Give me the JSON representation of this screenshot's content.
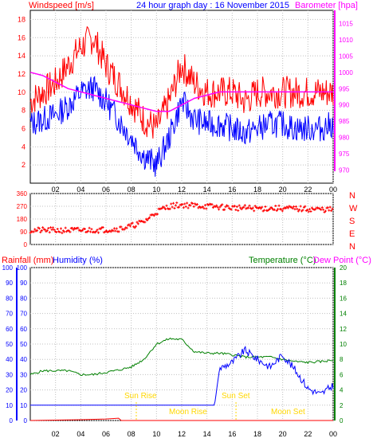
{
  "header": {
    "left_label": "Windspeed [m/s]",
    "center_label": "24 hour graph day : 16 November 2015",
    "right_label": "Barometer [hpa]"
  },
  "mid_panel": {
    "letters": [
      "N",
      "W",
      "S",
      "E",
      "N"
    ]
  },
  "bottom_header": {
    "rainfall": "Rainfall (mm)",
    "humidity": "Humidity (%)",
    "temperature": "Temperature (°C)",
    "dewpoint": "Dew Point (°C)"
  },
  "events": {
    "sunrise": "Sun Rise",
    "moonrise": "Moon Rise",
    "sunset": "Sun Set",
    "moonset": "Moon Set"
  },
  "colors": {
    "gust": "#ff0000",
    "wind": "#0000ff",
    "baro": "#ff00ff",
    "dir": "#ff0000",
    "temp": "#008000",
    "hum": "#0000ff",
    "rain": "#ff0000",
    "events": "#ffd700",
    "frame": "#000000",
    "grid": "#c0c0c0"
  },
  "chart_data": [
    {
      "type": "line",
      "x_ticks": [
        "02",
        "04",
        "06",
        "08",
        "10",
        "12",
        "14",
        "16",
        "18",
        "20",
        "22",
        "00"
      ],
      "x_range_hours": [
        0,
        24
      ],
      "y_left_ticks": [
        2,
        4,
        6,
        8,
        10,
        12,
        14,
        16,
        18
      ],
      "ylim_left": [
        0,
        19
      ],
      "y_right_ticks": [
        970,
        975,
        980,
        985,
        990,
        995,
        1000,
        1005,
        1010,
        1015
      ],
      "ylim_right": [
        966,
        1019
      ],
      "series": [
        {
          "name": "Windspeed [m/s]",
          "axis": "left",
          "x": [
            0,
            1,
            2,
            3,
            4,
            5,
            6,
            7,
            8,
            9,
            10,
            11,
            12,
            13,
            14,
            15,
            16,
            17,
            18,
            19,
            20,
            21,
            22,
            23,
            24
          ],
          "values": [
            6.5,
            7,
            7.5,
            8.5,
            10,
            10.5,
            9,
            7,
            5,
            3,
            2,
            5,
            9,
            7,
            6.5,
            6.5,
            6,
            5.5,
            6,
            6.5,
            6.5,
            6,
            6,
            6,
            6.5
          ]
        },
        {
          "name": "Gust",
          "axis": "left",
          "x": [
            0,
            1,
            2,
            3,
            4,
            5,
            6,
            7,
            8,
            9,
            10,
            11,
            12,
            13,
            14,
            15,
            16,
            17,
            18,
            19,
            20,
            21,
            22,
            23,
            24
          ],
          "values": [
            9,
            10,
            11,
            13,
            15,
            16,
            13,
            11,
            9,
            7,
            6,
            9,
            13,
            11,
            10,
            10,
            10,
            9,
            10,
            10,
            10,
            10,
            10,
            10,
            10
          ]
        },
        {
          "name": "Barometer [hpa]",
          "axis": "right",
          "x": [
            0,
            1,
            2,
            3,
            4,
            5,
            6,
            7,
            8,
            9,
            10,
            11,
            12,
            13,
            14,
            15,
            16,
            17,
            18,
            19,
            20,
            21,
            22,
            23,
            24
          ],
          "values": [
            1000,
            999,
            997,
            995,
            994,
            993,
            992,
            991,
            990,
            989,
            988,
            988,
            990,
            992,
            993,
            994,
            994,
            994,
            994,
            994,
            994,
            994,
            994,
            994,
            994
          ]
        }
      ]
    },
    {
      "type": "scatter",
      "x_ticks": [
        "02",
        "04",
        "06",
        "08",
        "10",
        "12",
        "14",
        "16",
        "18",
        "20",
        "22",
        "00"
      ],
      "y_ticks": [
        0,
        90,
        180,
        270,
        360
      ],
      "ylim": [
        0,
        360
      ],
      "series": [
        {
          "name": "Wind direction",
          "x": [
            0,
            2,
            4,
            6,
            7,
            8,
            9,
            10,
            11,
            12,
            14,
            16,
            18,
            20,
            22,
            24
          ],
          "values": [
            100,
            100,
            100,
            105,
            110,
            130,
            160,
            230,
            270,
            280,
            270,
            260,
            255,
            255,
            250,
            245
          ]
        }
      ]
    },
    {
      "type": "line",
      "x_ticks": [
        "02",
        "04",
        "06",
        "08",
        "10",
        "12",
        "14",
        "16",
        "18",
        "20",
        "22",
        "00"
      ],
      "y_left_ticks": [
        0,
        10,
        20,
        30,
        40,
        50,
        60,
        70,
        80,
        90,
        100
      ],
      "ylim_left": [
        0,
        100
      ],
      "y_right_ticks": [
        0,
        2,
        4,
        6,
        8,
        10,
        12,
        14,
        16,
        18,
        20
      ],
      "ylim_right": [
        0,
        20
      ],
      "series": [
        {
          "name": "Temperature (°C)",
          "axis": "right",
          "x": [
            0,
            1,
            2,
            3,
            4,
            5,
            6,
            7,
            8,
            9,
            10,
            11,
            12,
            13,
            14,
            15,
            16,
            17,
            18,
            19,
            20,
            21,
            22,
            23,
            24
          ],
          "values": [
            6,
            6.5,
            6.5,
            6.5,
            6,
            6,
            6.3,
            6.6,
            7,
            8,
            10,
            10.7,
            10.6,
            9,
            8.8,
            8.8,
            8.6,
            8.3,
            8.3,
            8.3,
            8,
            7.7,
            7.6,
            7.7,
            7.9
          ]
        },
        {
          "name": "Humidity (%)",
          "axis": "left",
          "x": [
            0,
            2,
            4,
            6,
            8,
            10,
            12,
            14,
            14.6,
            15,
            16,
            17,
            18,
            19,
            20,
            21,
            22,
            23,
            24
          ],
          "values": [
            10,
            10,
            10,
            10,
            10,
            10,
            10,
            10,
            10,
            34,
            38,
            46,
            40,
            35,
            43,
            33,
            21,
            17,
            23
          ]
        },
        {
          "name": "Rainfall (mm)",
          "axis": "left",
          "x": [
            0,
            4,
            6,
            7,
            7.2,
            8,
            24
          ],
          "values": [
            0,
            0.5,
            1,
            1.5,
            0,
            0,
            0
          ]
        }
      ]
    }
  ]
}
